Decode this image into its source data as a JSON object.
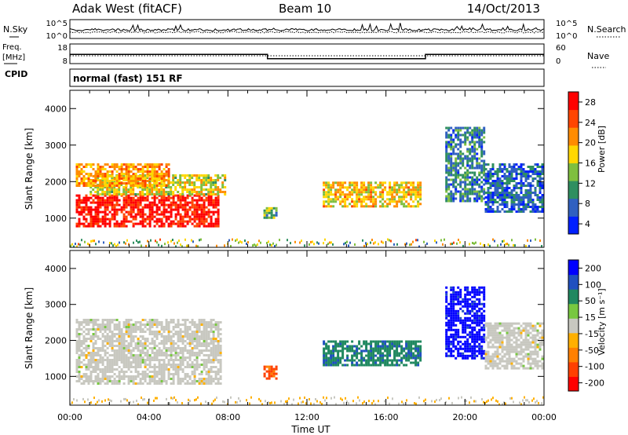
{
  "header": {
    "title": "Adak West (fitACF)",
    "beam": "Beam 10",
    "date": "14/Oct/2013"
  },
  "noise_panel": {
    "left_label": "N.Sky",
    "left_ticks": [
      "10^5",
      "10^0"
    ],
    "right_ticks": [
      "10^5",
      "10^0"
    ],
    "right_label": "N.Search"
  },
  "freq_panel": {
    "left_label_1": "Freq.",
    "left_label_2": "[MHz]",
    "left_ticks": [
      "18",
      "8"
    ],
    "right_ticks": [
      "60",
      "0"
    ],
    "right_label": "Nave",
    "cpid_label": "CPID",
    "cpid_text": "normal (fast) 151 RF",
    "freq_levels": [
      {
        "from": 0,
        "to": 10,
        "value": 12.7
      },
      {
        "from": 10,
        "to": 18,
        "value": 10.5
      },
      {
        "from": 18,
        "to": 24,
        "value": 12.7
      }
    ]
  },
  "chart_data": [
    {
      "type": "heatmap",
      "title": "",
      "xlabel": "",
      "ylabel": "Slant Range [km]",
      "xlim": [
        0,
        24
      ],
      "ylim": [
        200,
        4500
      ],
      "ytick_labels": [
        "1000",
        "2000",
        "3000",
        "4000"
      ],
      "colorbar": {
        "label": "Power [dB]",
        "tick_labels": [
          "28",
          "24",
          "20",
          "16",
          "12",
          "8",
          "4"
        ],
        "range": [
          0,
          30
        ]
      },
      "regions": [
        {
          "x": [
            0.3,
            7.5
          ],
          "y": [
            800,
            1650
          ],
          "value": 28
        },
        {
          "x": [
            1,
            7.8
          ],
          "y": [
            1650,
            2200
          ],
          "value": 16
        },
        {
          "x": [
            0.3,
            5
          ],
          "y": [
            1900,
            2500
          ],
          "value": 20
        },
        {
          "x": [
            9.8,
            10.4
          ],
          "y": [
            1000,
            1300
          ],
          "value": 12
        },
        {
          "x": [
            12.8,
            17.8
          ],
          "y": [
            1300,
            2000
          ],
          "value": 18
        },
        {
          "x": [
            19,
            21
          ],
          "y": [
            1500,
            3500
          ],
          "value": 8
        },
        {
          "x": [
            21,
            24
          ],
          "y": [
            1200,
            2500
          ],
          "value": 6
        }
      ]
    },
    {
      "type": "heatmap",
      "title": "",
      "xlabel": "Time UT",
      "ylabel": "Slant Range [km]",
      "xlim": [
        0,
        24
      ],
      "ylim": [
        200,
        4500
      ],
      "xtick_labels": [
        "00:00",
        "04:00",
        "08:00",
        "12:00",
        "16:00",
        "20:00",
        "00:00"
      ],
      "ytick_labels": [
        "1000",
        "2000",
        "3000",
        "4000"
      ],
      "colorbar": {
        "label": "Velocity [m s⁻¹]",
        "tick_labels": [
          "200",
          "100",
          "50",
          "15",
          "-15",
          "-50",
          "-100",
          "-200"
        ],
        "range": [
          -250,
          250
        ]
      },
      "regions": [
        {
          "x": [
            0.3,
            7.6
          ],
          "y": [
            800,
            2600
          ],
          "value": 0
        },
        {
          "x": [
            9.8,
            10.4
          ],
          "y": [
            950,
            1300
          ],
          "value": -150
        },
        {
          "x": [
            12.8,
            17.8
          ],
          "y": [
            1300,
            2000
          ],
          "value": 120
        },
        {
          "x": [
            19,
            21
          ],
          "y": [
            1500,
            3500
          ],
          "value": 220
        },
        {
          "x": [
            21,
            24
          ],
          "y": [
            1200,
            2500
          ],
          "value": 0
        }
      ]
    }
  ]
}
